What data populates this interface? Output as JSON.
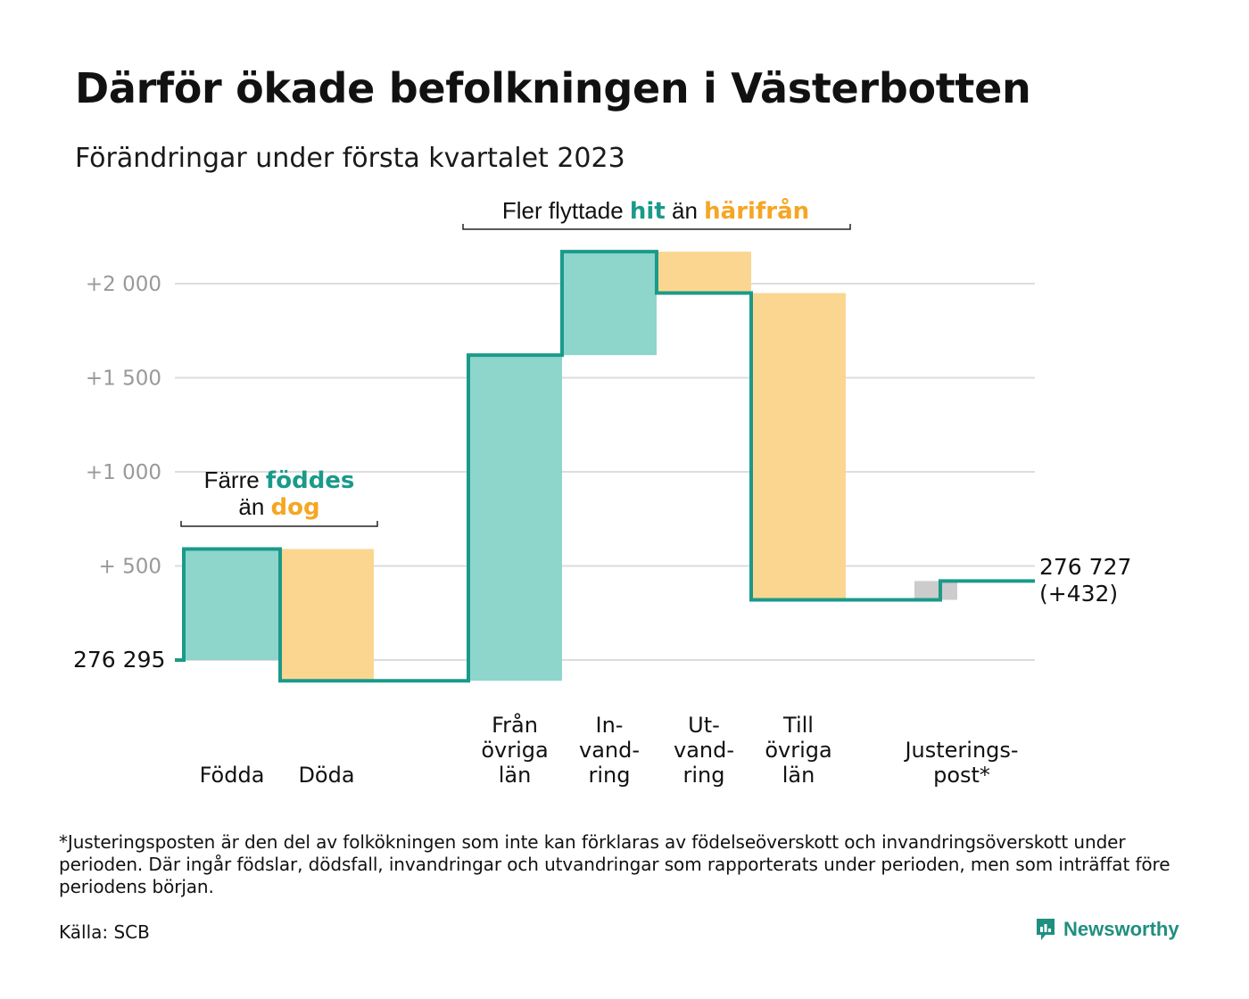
{
  "title": "Därför ökade befolkningen i Västerbotten",
  "subtitle": "Förändringar under första kvartalet 2023",
  "colors": {
    "line": "#1a9a8a",
    "positive": "#8ed5cc",
    "negative": "#fbd690",
    "adjustment": "#cccccc",
    "grid": "#dddddd",
    "teal_text": "#1a9a8a",
    "orange_text": "#f5a623"
  },
  "annotations": {
    "births": {
      "line1_pre": "Färre ",
      "line1_hl": "föddes",
      "line2_pre": "än ",
      "line2_hl": "dog"
    },
    "migration": {
      "pre": "Fler flyttade ",
      "hl1": "hit",
      "mid": " än ",
      "hl2": "härifrån"
    }
  },
  "chart_data": {
    "type": "waterfall",
    "start_label": "276 295",
    "end_label": "276 727",
    "end_change_label": "(+432)",
    "ytick_labels": [
      "+2 000",
      "+1 500",
      "+1 000",
      "+ 500"
    ],
    "yticks": [
      2000,
      1500,
      1000,
      500,
      0
    ],
    "ylim": [
      -230,
      2200
    ],
    "categories": [
      {
        "label": [
          "Födda"
        ],
        "value": 590
      },
      {
        "label": [
          "Döda"
        ],
        "value": -700
      },
      {
        "label": [
          "Från",
          "övriga",
          "län"
        ],
        "value": 1730
      },
      {
        "label": [
          "In-",
          "vand-",
          "ring"
        ],
        "value": 550
      },
      {
        "label": [
          "Ut-",
          "vand-",
          "ring"
        ],
        "value": -220
      },
      {
        "label": [
          "Till",
          "övriga",
          "län"
        ],
        "value": -1630
      },
      {
        "label": [
          "Justerings-",
          "post*"
        ],
        "value": 100
      }
    ],
    "final_change": 432
  },
  "footnote": "*Justeringsposten är den del av folkökningen som inte kan förklaras av födelseöverskott och invandringsöverskott under perioden. Där ingår födslar, dödsfall, invandringar och utvandringar som rapporterats under perioden, men som inträffat före periodens början.",
  "source": "Källa: SCB",
  "brand": {
    "name": "Newsworthy",
    "icon": "newsworthy-logo-icon"
  }
}
